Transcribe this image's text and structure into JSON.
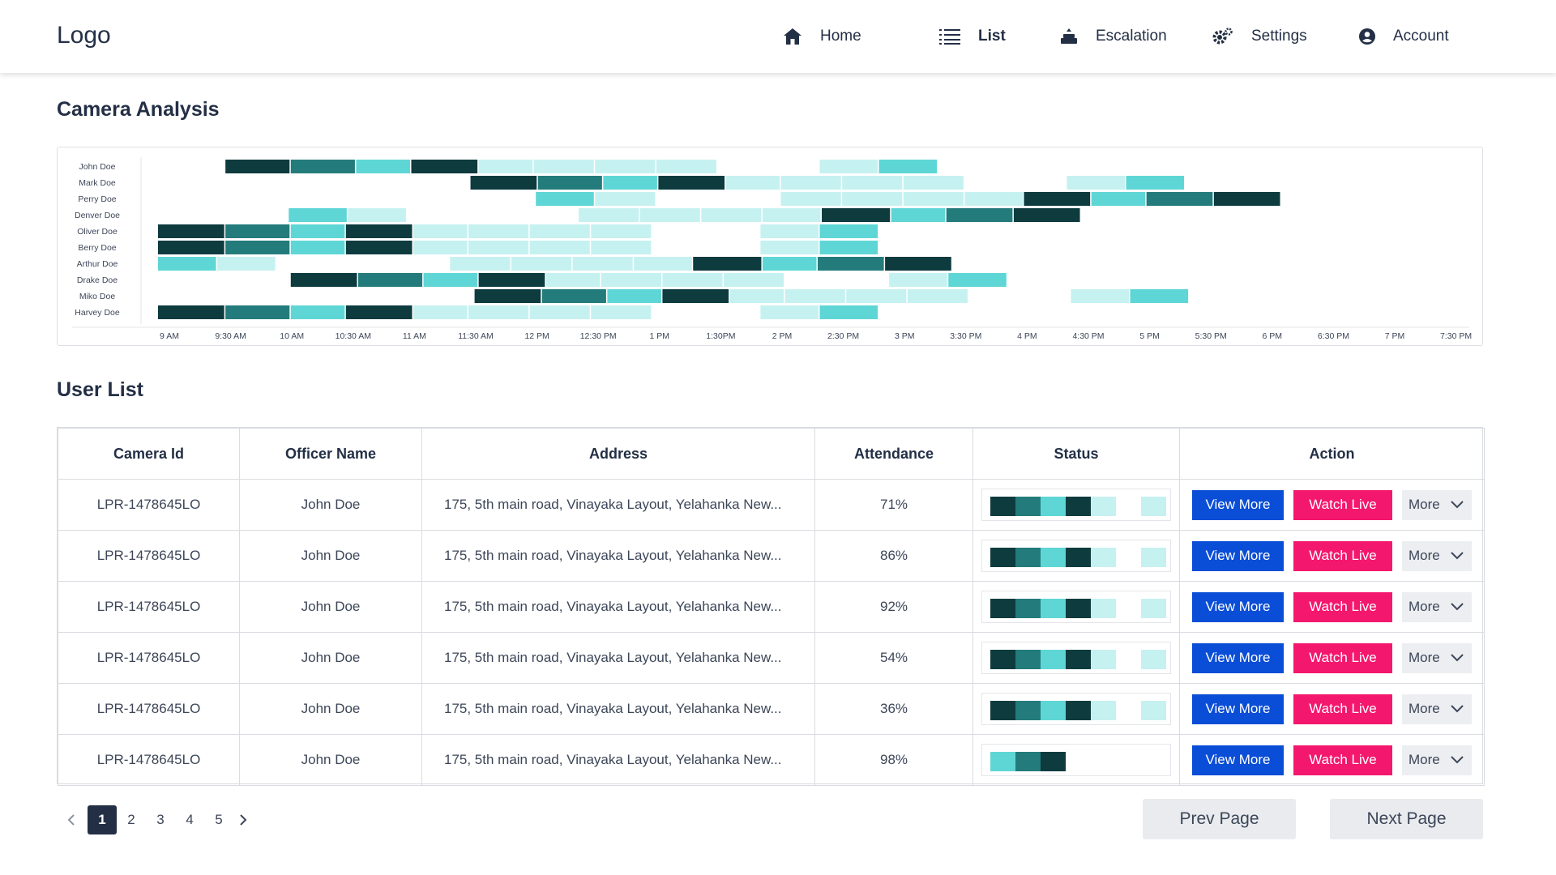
{
  "header": {
    "logo": "Logo",
    "nav": [
      {
        "label": "Home",
        "icon": "home-icon",
        "active": false
      },
      {
        "label": "List",
        "icon": "list-icon",
        "active": true
      },
      {
        "label": "Escalation",
        "icon": "escalation-icon",
        "active": false
      },
      {
        "label": "Settings",
        "icon": "gear-icon",
        "active": false
      },
      {
        "label": "Account",
        "icon": "account-icon",
        "active": false
      }
    ]
  },
  "camera_analysis": {
    "title": "Camera Analysis"
  },
  "chart_data": {
    "type": "heatmap",
    "rows": [
      "John Doe",
      "Mark Doe",
      "Perry Doe",
      "Denver Doe",
      "Oliver Doe",
      "Berry Doe",
      "Arthur Doe",
      "Drake Doe",
      "Miko Doe",
      "Harvey Doe"
    ],
    "x_ticks": [
      "9 AM",
      "9:30 AM",
      "10 AM",
      "10:30 AM",
      "11 AM",
      "11:30 AM",
      "12 PM",
      "12:30 PM",
      "1 PM",
      "1:30PM",
      "2 PM",
      "2:30 PM",
      "3 PM",
      "3:30 PM",
      "4 PM",
      "4:30 PM",
      "5 PM",
      "5:30 PM",
      "6 PM",
      "6:30 PM",
      "7 PM",
      "7:30 PM"
    ],
    "levels": [
      "dark",
      "mid",
      "aqua",
      "light"
    ],
    "colors": {
      "dark": "#0d3b3e",
      "mid": "#237c7b",
      "aqua": "#5fd6d6",
      "light": "#c6f1f1"
    },
    "rows_data": [
      [
        [
          "9:33",
          "10:05",
          "dark"
        ],
        [
          "10:05",
          "10:37",
          "mid"
        ],
        [
          "10:37",
          "11:04",
          "aqua"
        ],
        [
          "11:04",
          "11:37",
          "dark"
        ],
        [
          "11:37",
          "12:04",
          "light"
        ],
        [
          "12:04",
          "12:34",
          "light"
        ],
        [
          "12:34",
          "13:04",
          "light"
        ],
        [
          "13:04",
          "13:34",
          "light"
        ],
        [
          "14:24",
          "14:53",
          "light"
        ],
        [
          "14:53",
          "15:22",
          "aqua"
        ]
      ],
      [
        [
          "11:33",
          "12:06",
          "dark"
        ],
        [
          "12:06",
          "12:38",
          "mid"
        ],
        [
          "12:38",
          "13:05",
          "aqua"
        ],
        [
          "13:05",
          "13:38",
          "dark"
        ],
        [
          "13:38",
          "14:05",
          "light"
        ],
        [
          "14:05",
          "14:35",
          "light"
        ],
        [
          "14:35",
          "15:05",
          "light"
        ],
        [
          "15:05",
          "15:35",
          "light"
        ],
        [
          "16:25",
          "16:54",
          "light"
        ],
        [
          "16:54",
          "17:23",
          "aqua"
        ]
      ],
      [
        [
          "12:05",
          "12:34",
          "aqua"
        ],
        [
          "12:34",
          "13:04",
          "light"
        ],
        [
          "14:05",
          "14:35",
          "light"
        ],
        [
          "14:35",
          "15:05",
          "light"
        ],
        [
          "15:05",
          "15:35",
          "light"
        ],
        [
          "15:35",
          "16:04",
          "light"
        ],
        [
          "16:04",
          "16:37",
          "dark"
        ],
        [
          "16:37",
          "17:04",
          "aqua"
        ],
        [
          "17:04",
          "17:37",
          "mid"
        ],
        [
          "17:37",
          "18:10",
          "dark"
        ]
      ],
      [
        [
          "10:04",
          "10:33",
          "aqua"
        ],
        [
          "10:33",
          "11:02",
          "light"
        ],
        [
          "12:26",
          "12:56",
          "light"
        ],
        [
          "12:56",
          "13:26",
          "light"
        ],
        [
          "13:26",
          "13:56",
          "light"
        ],
        [
          "13:56",
          "14:25",
          "light"
        ],
        [
          "14:25",
          "14:59",
          "dark"
        ],
        [
          "14:59",
          "15:26",
          "aqua"
        ],
        [
          "15:26",
          "15:59",
          "mid"
        ],
        [
          "15:59",
          "16:32",
          "dark"
        ]
      ],
      [
        [
          "9:00",
          "9:33",
          "dark"
        ],
        [
          "9:33",
          "10:05",
          "mid"
        ],
        [
          "10:05",
          "10:32",
          "aqua"
        ],
        [
          "10:32",
          "11:05",
          "dark"
        ],
        [
          "11:05",
          "11:32",
          "light"
        ],
        [
          "11:32",
          "12:02",
          "light"
        ],
        [
          "12:02",
          "12:32",
          "light"
        ],
        [
          "12:32",
          "13:02",
          "light"
        ],
        [
          "13:55",
          "14:24",
          "light"
        ],
        [
          "14:24",
          "14:53",
          "aqua"
        ]
      ],
      [
        [
          "9:00",
          "9:33",
          "dark"
        ],
        [
          "9:33",
          "10:05",
          "mid"
        ],
        [
          "10:05",
          "10:32",
          "aqua"
        ],
        [
          "10:32",
          "11:05",
          "dark"
        ],
        [
          "11:05",
          "11:32",
          "light"
        ],
        [
          "11:32",
          "12:02",
          "light"
        ],
        [
          "12:02",
          "12:32",
          "light"
        ],
        [
          "12:32",
          "13:02",
          "light"
        ],
        [
          "13:55",
          "14:24",
          "light"
        ],
        [
          "14:24",
          "14:53",
          "aqua"
        ]
      ],
      [
        [
          "9:00",
          "9:29",
          "aqua"
        ],
        [
          "9:29",
          "9:58",
          "light"
        ],
        [
          "11:23",
          "11:53",
          "light"
        ],
        [
          "11:53",
          "12:23",
          "light"
        ],
        [
          "12:23",
          "12:53",
          "light"
        ],
        [
          "12:53",
          "13:22",
          "light"
        ],
        [
          "13:22",
          "13:56",
          "dark"
        ],
        [
          "13:56",
          "14:23",
          "aqua"
        ],
        [
          "14:23",
          "14:56",
          "mid"
        ],
        [
          "14:56",
          "15:29",
          "dark"
        ]
      ],
      [
        [
          "10:05",
          "10:38",
          "dark"
        ],
        [
          "10:38",
          "11:10",
          "mid"
        ],
        [
          "11:10",
          "11:37",
          "aqua"
        ],
        [
          "11:37",
          "12:10",
          "dark"
        ],
        [
          "12:10",
          "12:37",
          "light"
        ],
        [
          "12:37",
          "13:07",
          "light"
        ],
        [
          "13:07",
          "13:37",
          "light"
        ],
        [
          "13:37",
          "14:07",
          "light"
        ],
        [
          "14:58",
          "15:27",
          "light"
        ],
        [
          "15:27",
          "15:56",
          "aqua"
        ]
      ],
      [
        [
          "11:35",
          "12:08",
          "dark"
        ],
        [
          "12:08",
          "12:40",
          "mid"
        ],
        [
          "12:40",
          "13:07",
          "aqua"
        ],
        [
          "13:07",
          "13:40",
          "dark"
        ],
        [
          "13:40",
          "14:07",
          "light"
        ],
        [
          "14:07",
          "14:37",
          "light"
        ],
        [
          "14:37",
          "15:07",
          "light"
        ],
        [
          "15:07",
          "15:37",
          "light"
        ],
        [
          "16:27",
          "16:56",
          "light"
        ],
        [
          "16:56",
          "17:25",
          "aqua"
        ]
      ],
      [
        [
          "9:00",
          "9:33",
          "dark"
        ],
        [
          "9:33",
          "10:05",
          "mid"
        ],
        [
          "10:05",
          "10:32",
          "aqua"
        ],
        [
          "10:32",
          "11:05",
          "dark"
        ],
        [
          "11:05",
          "11:32",
          "light"
        ],
        [
          "11:32",
          "12:02",
          "light"
        ],
        [
          "12:02",
          "12:32",
          "light"
        ],
        [
          "12:32",
          "13:02",
          "light"
        ],
        [
          "13:55",
          "14:24",
          "light"
        ],
        [
          "14:24",
          "14:53",
          "aqua"
        ]
      ]
    ]
  },
  "user_list": {
    "title": "User List",
    "columns": [
      "Camera Id",
      "Officer Name",
      "Address",
      "Attendance",
      "Status",
      "Action"
    ],
    "rows": [
      {
        "camera_id": "LPR-1478645LO",
        "officer": "John Doe",
        "address": "175, 5th main road, Vinayaka Layout, Yelahanka New...",
        "attendance": "71%",
        "status": "full"
      },
      {
        "camera_id": "LPR-1478645LO",
        "officer": "John Doe",
        "address": "175, 5th main road, Vinayaka Layout, Yelahanka New...",
        "attendance": "86%",
        "status": "full"
      },
      {
        "camera_id": "LPR-1478645LO",
        "officer": "John Doe",
        "address": "175, 5th main road, Vinayaka Layout, Yelahanka New...",
        "attendance": "92%",
        "status": "full"
      },
      {
        "camera_id": "LPR-1478645LO",
        "officer": "John Doe",
        "address": "175, 5th main road, Vinayaka Layout, Yelahanka New...",
        "attendance": "54%",
        "status": "full"
      },
      {
        "camera_id": "LPR-1478645LO",
        "officer": "John Doe",
        "address": "175, 5th main road, Vinayaka Layout, Yelahanka New...",
        "attendance": "36%",
        "status": "full"
      },
      {
        "camera_id": "LPR-1478645LO",
        "officer": "John Doe",
        "address": "175, 5th main road, Vinayaka Layout, Yelahanka New...",
        "attendance": "98%",
        "status": "short"
      }
    ],
    "status_patterns": {
      "full": [
        "dark",
        "mid",
        "aqua",
        "dark",
        "light",
        "gap",
        "light"
      ],
      "short": [
        "aqua",
        "mid",
        "dark"
      ]
    },
    "actions": {
      "view_more": "View More",
      "watch_live": "Watch Live",
      "more": "More"
    }
  },
  "pagination": {
    "pages": [
      "1",
      "2",
      "3",
      "4",
      "5"
    ],
    "current": "1",
    "prev": "Prev Page",
    "next": "Next Page"
  }
}
